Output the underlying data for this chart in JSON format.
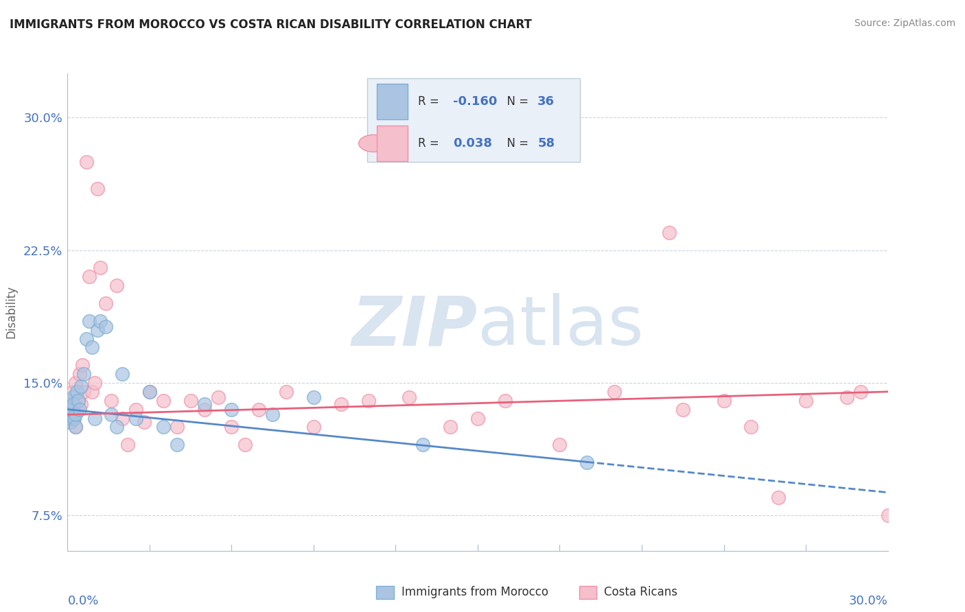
{
  "title": "IMMIGRANTS FROM MOROCCO VS COSTA RICAN DISABILITY CORRELATION CHART",
  "source": "Source: ZipAtlas.com",
  "ylabel": "Disability",
  "yticks": [
    7.5,
    15.0,
    22.5,
    30.0
  ],
  "ytick_labels": [
    "7.5%",
    "15.0%",
    "22.5%",
    "30.0%"
  ],
  "xmin": 0.0,
  "xmax": 30.0,
  "ymin": 5.5,
  "ymax": 32.5,
  "series1_label": "Immigrants from Morocco",
  "series1_R": "-0.160",
  "series1_N": "36",
  "series1_color": "#aac4e2",
  "series1_edge_color": "#7aafd4",
  "series1_line_color": "#5588c8",
  "series2_label": "Costa Ricans",
  "series2_R": "0.038",
  "series2_N": "58",
  "series2_color": "#f5bfcc",
  "series2_edge_color": "#f090a8",
  "series2_line_color": "#e8607a",
  "background_color": "#ffffff",
  "watermark_color": "#d8e4f0",
  "grid_color": "#c8d4e0",
  "axis_color": "#aabbcc",
  "blue_text_color": "#4472c4",
  "legend_box_color": "#eaf0f8",
  "legend_border_color": "#c0ccd8",
  "series1_x": [
    0.05,
    0.08,
    0.1,
    0.12,
    0.15,
    0.18,
    0.2,
    0.22,
    0.25,
    0.28,
    0.3,
    0.35,
    0.4,
    0.45,
    0.5,
    0.6,
    0.7,
    0.8,
    0.9,
    1.0,
    1.1,
    1.2,
    1.4,
    1.6,
    1.8,
    2.0,
    2.5,
    3.0,
    3.5,
    4.0,
    5.0,
    6.0,
    7.5,
    9.0,
    13.0,
    19.0
  ],
  "series1_y": [
    13.2,
    13.5,
    14.0,
    12.8,
    13.0,
    13.5,
    14.2,
    13.8,
    13.0,
    12.5,
    13.2,
    14.5,
    14.0,
    13.5,
    14.8,
    15.5,
    17.5,
    18.5,
    17.0,
    13.0,
    18.0,
    18.5,
    18.2,
    13.2,
    12.5,
    15.5,
    13.0,
    14.5,
    12.5,
    11.5,
    13.8,
    13.5,
    13.2,
    14.2,
    11.5,
    10.5
  ],
  "series2_x": [
    0.05,
    0.08,
    0.1,
    0.12,
    0.15,
    0.18,
    0.2,
    0.22,
    0.25,
    0.28,
    0.3,
    0.35,
    0.4,
    0.45,
    0.5,
    0.55,
    0.6,
    0.7,
    0.8,
    0.9,
    1.0,
    1.1,
    1.2,
    1.4,
    1.6,
    1.8,
    2.0,
    2.2,
    2.5,
    2.8,
    3.0,
    3.5,
    4.0,
    4.5,
    5.0,
    5.5,
    6.0,
    6.5,
    7.0,
    8.0,
    9.0,
    10.0,
    11.0,
    12.5,
    14.0,
    15.0,
    16.0,
    18.0,
    20.0,
    22.0,
    24.0,
    25.0,
    26.0,
    27.0,
    28.5,
    29.0,
    30.0,
    22.5
  ],
  "series2_y": [
    13.0,
    12.8,
    13.5,
    14.0,
    13.2,
    13.8,
    14.5,
    13.0,
    14.0,
    15.0,
    12.5,
    13.5,
    14.0,
    15.5,
    13.8,
    16.0,
    14.5,
    27.5,
    21.0,
    14.5,
    15.0,
    26.0,
    21.5,
    19.5,
    14.0,
    20.5,
    13.0,
    11.5,
    13.5,
    12.8,
    14.5,
    14.0,
    12.5,
    14.0,
    13.5,
    14.2,
    12.5,
    11.5,
    13.5,
    14.5,
    12.5,
    13.8,
    14.0,
    14.2,
    12.5,
    13.0,
    14.0,
    11.5,
    14.5,
    23.5,
    14.0,
    12.5,
    8.5,
    14.0,
    14.2,
    14.5,
    7.5,
    13.5
  ],
  "line1_x0": 0.0,
  "line1_y0": 13.5,
  "line1_x1": 30.0,
  "line1_y1": 8.8,
  "line1_solid_end": 19.0,
  "line2_x0": 0.0,
  "line2_y0": 13.2,
  "line2_x1": 30.0,
  "line2_y1": 14.5
}
